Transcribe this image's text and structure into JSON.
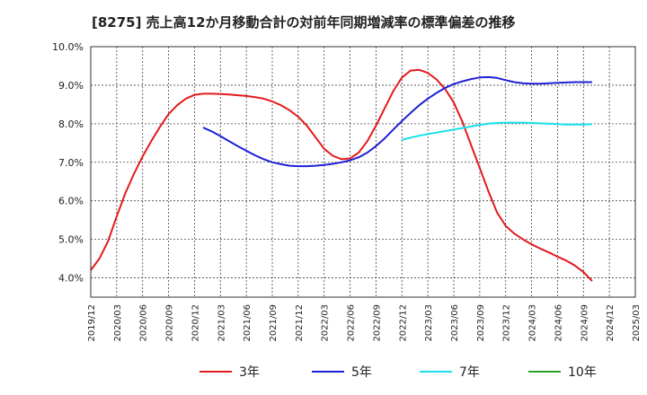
{
  "chart_data": {
    "type": "line",
    "title": "[8275]  売上高12か月移動合計の対前年同期増減率の標準偏差の推移",
    "xlabel": "",
    "ylabel": "",
    "ylim": [
      3.5,
      10.0
    ],
    "xlim": [
      "2019/12",
      "2025/03"
    ],
    "y_ticks": [
      "4.0%",
      "5.0%",
      "6.0%",
      "7.0%",
      "8.0%",
      "9.0%",
      "10.0%"
    ],
    "y_tick_values": [
      4.0,
      5.0,
      6.0,
      7.0,
      8.0,
      9.0,
      10.0
    ],
    "x_ticks": [
      "2019/12",
      "2020/03",
      "2020/06",
      "2020/09",
      "2020/12",
      "2021/03",
      "2021/06",
      "2021/09",
      "2021/12",
      "2022/03",
      "2022/06",
      "2022/09",
      "2022/12",
      "2023/03",
      "2023/06",
      "2023/09",
      "2023/12",
      "2024/03",
      "2024/06",
      "2024/09",
      "2024/12",
      "2025/03"
    ],
    "grid": true,
    "legend_position": "bottom",
    "series": [
      {
        "name": "3年",
        "color": "#e31a1c",
        "points": [
          [
            "2019/12",
            4.2
          ],
          [
            "2020/01",
            4.5
          ],
          [
            "2020/02",
            4.95
          ],
          [
            "2020/03",
            5.6
          ],
          [
            "2020/04",
            6.2
          ],
          [
            "2020/05",
            6.7
          ],
          [
            "2020/06",
            7.15
          ],
          [
            "2020/07",
            7.55
          ],
          [
            "2020/08",
            7.92
          ],
          [
            "2020/09",
            8.25
          ],
          [
            "2020/10",
            8.48
          ],
          [
            "2020/11",
            8.65
          ],
          [
            "2020/12",
            8.75
          ],
          [
            "2021/01",
            8.78
          ],
          [
            "2021/02",
            8.78
          ],
          [
            "2021/03",
            8.77
          ],
          [
            "2021/04",
            8.76
          ],
          [
            "2021/05",
            8.74
          ],
          [
            "2021/06",
            8.72
          ],
          [
            "2021/07",
            8.69
          ],
          [
            "2021/08",
            8.65
          ],
          [
            "2021/09",
            8.58
          ],
          [
            "2021/10",
            8.48
          ],
          [
            "2021/11",
            8.35
          ],
          [
            "2021/12",
            8.18
          ],
          [
            "2022/01",
            7.95
          ],
          [
            "2022/02",
            7.65
          ],
          [
            "2022/03",
            7.35
          ],
          [
            "2022/04",
            7.17
          ],
          [
            "2022/05",
            7.08
          ],
          [
            "2022/06",
            7.1
          ],
          [
            "2022/07",
            7.25
          ],
          [
            "2022/08",
            7.55
          ],
          [
            "2022/09",
            7.95
          ],
          [
            "2022/10",
            8.4
          ],
          [
            "2022/11",
            8.85
          ],
          [
            "2022/12",
            9.2
          ],
          [
            "2023/01",
            9.38
          ],
          [
            "2023/02",
            9.4
          ],
          [
            "2023/03",
            9.32
          ],
          [
            "2023/04",
            9.15
          ],
          [
            "2023/05",
            8.9
          ],
          [
            "2023/06",
            8.55
          ],
          [
            "2023/07",
            8.05
          ],
          [
            "2023/08",
            7.45
          ],
          [
            "2023/09",
            6.85
          ],
          [
            "2023/10",
            6.25
          ],
          [
            "2023/11",
            5.7
          ],
          [
            "2023/12",
            5.35
          ],
          [
            "2024/01",
            5.15
          ],
          [
            "2024/02",
            5.0
          ],
          [
            "2024/03",
            4.87
          ],
          [
            "2024/04",
            4.76
          ],
          [
            "2024/05",
            4.66
          ],
          [
            "2024/06",
            4.55
          ],
          [
            "2024/07",
            4.45
          ],
          [
            "2024/08",
            4.32
          ],
          [
            "2024/09",
            4.15
          ],
          [
            "2024/10",
            3.92
          ]
        ]
      },
      {
        "name": "5年",
        "color": "#1f1fd6",
        "points": [
          [
            "2021/01",
            7.9
          ],
          [
            "2021/02",
            7.8
          ],
          [
            "2021/03",
            7.68
          ],
          [
            "2021/04",
            7.55
          ],
          [
            "2021/05",
            7.42
          ],
          [
            "2021/06",
            7.3
          ],
          [
            "2021/07",
            7.18
          ],
          [
            "2021/08",
            7.08
          ],
          [
            "2021/09",
            7.0
          ],
          [
            "2021/10",
            6.95
          ],
          [
            "2021/11",
            6.91
          ],
          [
            "2021/12",
            6.9
          ],
          [
            "2022/01",
            6.9
          ],
          [
            "2022/02",
            6.91
          ],
          [
            "2022/03",
            6.93
          ],
          [
            "2022/04",
            6.96
          ],
          [
            "2022/05",
            7.0
          ],
          [
            "2022/06",
            7.05
          ],
          [
            "2022/07",
            7.13
          ],
          [
            "2022/08",
            7.25
          ],
          [
            "2022/09",
            7.42
          ],
          [
            "2022/10",
            7.62
          ],
          [
            "2022/11",
            7.85
          ],
          [
            "2022/12",
            8.07
          ],
          [
            "2023/01",
            8.28
          ],
          [
            "2023/02",
            8.48
          ],
          [
            "2023/03",
            8.65
          ],
          [
            "2023/04",
            8.8
          ],
          [
            "2023/05",
            8.93
          ],
          [
            "2023/06",
            9.03
          ],
          [
            "2023/07",
            9.1
          ],
          [
            "2023/08",
            9.16
          ],
          [
            "2023/09",
            9.2
          ],
          [
            "2023/10",
            9.21
          ],
          [
            "2023/11",
            9.19
          ],
          [
            "2023/12",
            9.13
          ],
          [
            "2024/01",
            9.08
          ],
          [
            "2024/02",
            9.05
          ],
          [
            "2024/03",
            9.04
          ],
          [
            "2024/04",
            9.04
          ],
          [
            "2024/05",
            9.05
          ],
          [
            "2024/06",
            9.06
          ],
          [
            "2024/07",
            9.07
          ],
          [
            "2024/08",
            9.08
          ],
          [
            "2024/09",
            9.08
          ],
          [
            "2024/10",
            9.08
          ]
        ]
      },
      {
        "name": "7年",
        "color": "#17e0e8",
        "points": [
          [
            "2022/12",
            7.58
          ],
          [
            "2023/01",
            7.64
          ],
          [
            "2023/02",
            7.69
          ],
          [
            "2023/03",
            7.73
          ],
          [
            "2023/04",
            7.77
          ],
          [
            "2023/05",
            7.81
          ],
          [
            "2023/06",
            7.85
          ],
          [
            "2023/07",
            7.89
          ],
          [
            "2023/08",
            7.93
          ],
          [
            "2023/09",
            7.97
          ],
          [
            "2023/10",
            8.0
          ],
          [
            "2023/11",
            8.02
          ],
          [
            "2023/12",
            8.03
          ],
          [
            "2024/01",
            8.03
          ],
          [
            "2024/02",
            8.03
          ],
          [
            "2024/03",
            8.02
          ],
          [
            "2024/04",
            8.01
          ],
          [
            "2024/05",
            8.0
          ],
          [
            "2024/06",
            7.99
          ],
          [
            "2024/07",
            7.98
          ],
          [
            "2024/08",
            7.98
          ],
          [
            "2024/09",
            7.98
          ],
          [
            "2024/10",
            7.99
          ]
        ]
      },
      {
        "name": "10年",
        "color": "#2ca02c",
        "points": []
      }
    ]
  }
}
